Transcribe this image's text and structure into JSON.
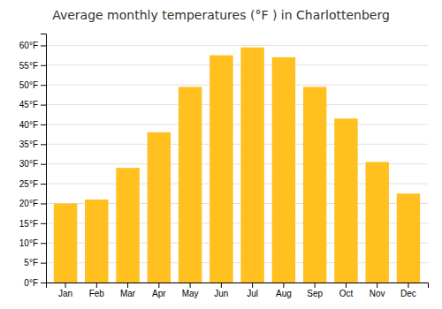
{
  "chart_data": {
    "type": "bar",
    "title": "Average monthly temperatures (°F ) in Charlottenberg",
    "categories": [
      "Jan",
      "Feb",
      "Mar",
      "Apr",
      "May",
      "Jun",
      "Jul",
      "Aug",
      "Sep",
      "Oct",
      "Nov",
      "Dec"
    ],
    "values": [
      20.0,
      21.0,
      29.0,
      38.0,
      49.5,
      57.5,
      59.5,
      57.0,
      49.5,
      41.5,
      30.5,
      22.5
    ],
    "color": "#FFC020",
    "ylim": [
      0,
      63
    ],
    "yticks": [
      {
        "value": 0,
        "label": "0°F"
      },
      {
        "value": 5,
        "label": "5°F"
      },
      {
        "value": 10,
        "label": "10°F"
      },
      {
        "value": 15,
        "label": "15°F"
      },
      {
        "value": 20,
        "label": "20°F"
      },
      {
        "value": 25,
        "label": "25°F"
      },
      {
        "value": 30,
        "label": "30°F"
      },
      {
        "value": 35,
        "label": "35°F"
      },
      {
        "value": 40,
        "label": "40°F"
      },
      {
        "value": 45,
        "label": "45°F"
      },
      {
        "value": 50,
        "label": "50°F"
      },
      {
        "value": 55,
        "label": "55°F"
      },
      {
        "value": 60,
        "label": "60°F"
      }
    ],
    "grid": true
  }
}
